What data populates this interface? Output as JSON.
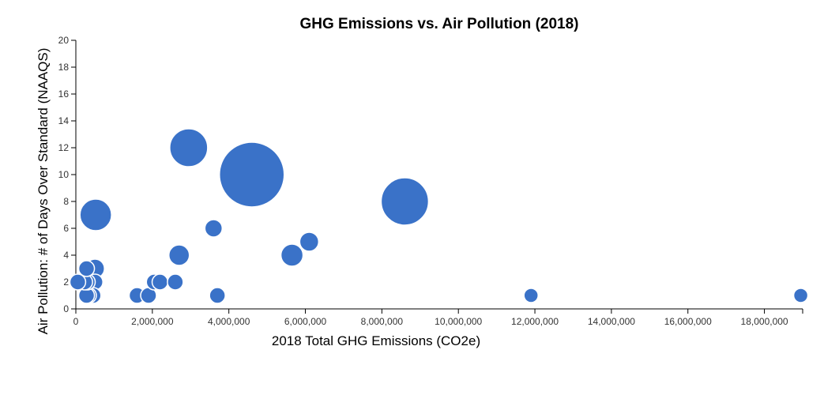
{
  "chart_data": {
    "type": "scatter",
    "title": "GHG Emissions vs. Air Pollution (2018)",
    "xlabel": "2018 Total GHG Emissions (CO2e)",
    "ylabel": "Air Pollution: # of Days Over Standard (NAAQS)",
    "xlim": [
      0,
      19000000
    ],
    "ylim": [
      0,
      20
    ],
    "x_ticks": [
      0,
      2000000,
      4000000,
      6000000,
      8000000,
      10000000,
      12000000,
      14000000,
      16000000,
      18000000
    ],
    "x_tick_labels": [
      "0",
      "2,000,000",
      "4,000,000",
      "6,000,000",
      "8,000,000",
      "10,000,000",
      "12,000,000",
      "14,000,000",
      "16,000,000",
      "18,000,000"
    ],
    "y_ticks": [
      0,
      2,
      4,
      6,
      8,
      10,
      12,
      14,
      16,
      18,
      20
    ],
    "y_tick_labels": [
      "0",
      "2",
      "4",
      "6",
      "8",
      "10",
      "12",
      "14",
      "16",
      "18",
      "20"
    ],
    "grid": false,
    "marker_color": "#3a72c8",
    "marker_edge_color": "#ffffff",
    "points": [
      {
        "x": 500000,
        "y": 2,
        "size": 1.0
      },
      {
        "x": 450000,
        "y": 1,
        "size": 1.0
      },
      {
        "x": 330000,
        "y": 1,
        "size": 1.0
      },
      {
        "x": 280000,
        "y": 1,
        "size": 1.0
      },
      {
        "x": 300000,
        "y": 2,
        "size": 1.0
      },
      {
        "x": 230000,
        "y": 2,
        "size": 1.0
      },
      {
        "x": 50000,
        "y": 2,
        "size": 1.0
      },
      {
        "x": 500000,
        "y": 3,
        "size": 1.2
      },
      {
        "x": 280000,
        "y": 3,
        "size": 1.0
      },
      {
        "x": 520000,
        "y": 7,
        "size": 2.0
      },
      {
        "x": 1600000,
        "y": 1,
        "size": 1.0
      },
      {
        "x": 1900000,
        "y": 1,
        "size": 1.0
      },
      {
        "x": 2050000,
        "y": 2,
        "size": 1.0
      },
      {
        "x": 2200000,
        "y": 2,
        "size": 1.0
      },
      {
        "x": 2600000,
        "y": 2,
        "size": 1.0
      },
      {
        "x": 2700000,
        "y": 4,
        "size": 1.3
      },
      {
        "x": 2950000,
        "y": 12,
        "size": 2.4
      },
      {
        "x": 3600000,
        "y": 6,
        "size": 1.1
      },
      {
        "x": 3700000,
        "y": 1,
        "size": 1.0
      },
      {
        "x": 4600000,
        "y": 10,
        "size": 4.1
      },
      {
        "x": 5650000,
        "y": 4,
        "size": 1.4
      },
      {
        "x": 6100000,
        "y": 5,
        "size": 1.2
      },
      {
        "x": 8600000,
        "y": 8,
        "size": 3.0
      },
      {
        "x": 11900000,
        "y": 1,
        "size": 0.9
      },
      {
        "x": 18950000,
        "y": 1,
        "size": 0.9
      }
    ]
  }
}
